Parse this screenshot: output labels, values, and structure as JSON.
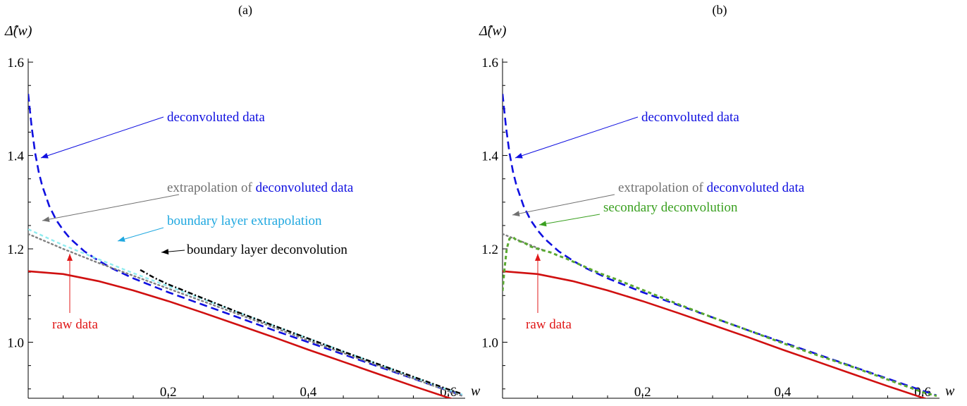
{
  "chart_data": [
    {
      "type": "line",
      "panel_label": "(a)",
      "xlabel": "w",
      "ylabel": "Δ̂(w)",
      "xlim": [
        0,
        0.62
      ],
      "ylim": [
        0.88,
        1.65
      ],
      "x_ticks": [
        {
          "value": 0.2,
          "label": "0.2"
        },
        {
          "value": 0.4,
          "label": "0.4"
        },
        {
          "value": 0.6,
          "label": "0.6"
        }
      ],
      "y_ticks": [
        {
          "value": 1.0,
          "label": "1.0"
        },
        {
          "value": 1.2,
          "label": "1.2"
        },
        {
          "value": 1.4,
          "label": "1.4"
        },
        {
          "value": 1.6,
          "label": "1.6"
        }
      ],
      "grid": false,
      "series": [
        {
          "key": "raw",
          "color": "#d01010",
          "dash": "solid",
          "x": [
            0,
            0.05,
            0.1,
            0.15,
            0.2,
            0.25,
            0.3,
            0.35,
            0.4,
            0.45,
            0.5,
            0.55,
            0.6,
            0.62
          ],
          "y": [
            1.152,
            1.146,
            1.131,
            1.111,
            1.088,
            1.063,
            1.037,
            1.011,
            0.984,
            0.958,
            0.932,
            0.906,
            0.881,
            0.872
          ]
        },
        {
          "key": "deconv",
          "color": "#1010e0",
          "dash": "long",
          "x": [
            0.0,
            0.005,
            0.01,
            0.015,
            0.02,
            0.03,
            0.04,
            0.05,
            0.06,
            0.08,
            0.1,
            0.12,
            0.15,
            0.2,
            0.25,
            0.3,
            0.35,
            0.4,
            0.45,
            0.5,
            0.55,
            0.6,
            0.62
          ],
          "y": [
            1.532,
            1.46,
            1.405,
            1.365,
            1.335,
            1.292,
            1.262,
            1.24,
            1.222,
            1.195,
            1.175,
            1.158,
            1.137,
            1.107,
            1.08,
            1.053,
            1.026,
            1.0,
            0.974,
            0.948,
            0.922,
            0.896,
            0.886
          ]
        },
        {
          "key": "extrap",
          "color": "#808080",
          "dash": "dot",
          "x": [
            0,
            0.05,
            0.1,
            0.2,
            0.3,
            0.4,
            0.5,
            0.6,
            0.62
          ],
          "y": [
            1.232,
            1.2,
            1.17,
            1.115,
            1.06,
            1.004,
            0.95,
            0.895,
            0.885
          ]
        },
        {
          "key": "bl_extrap",
          "color": "#90ecf0",
          "dash": "short",
          "x": [
            0,
            0.05,
            0.1,
            0.15,
            0.2,
            0.3,
            0.4,
            0.5,
            0.6,
            0.62
          ],
          "y": [
            1.242,
            1.208,
            1.178,
            1.148,
            1.12,
            1.064,
            1.008,
            0.953,
            0.898,
            0.888
          ]
        },
        {
          "key": "bl_deconv",
          "color": "#000000",
          "dash": "dashdot",
          "x": [
            0.16,
            0.18,
            0.2,
            0.22,
            0.25,
            0.3,
            0.35,
            0.4,
            0.45,
            0.5,
            0.55,
            0.6,
            0.62
          ],
          "y": [
            1.155,
            1.138,
            1.124,
            1.112,
            1.094,
            1.064,
            1.036,
            1.008,
            0.98,
            0.953,
            0.926,
            0.899,
            0.889
          ]
        }
      ],
      "annotations": [
        {
          "key": "deconv",
          "text": "deconvoluted data",
          "color": "#1010e0"
        },
        {
          "key": "extrap",
          "prefix": "extrapolation of ",
          "prefix_color": "#707070",
          "text": "deconvoluted data",
          "color": "#1010e0"
        },
        {
          "key": "bl_extrap",
          "text": "boundary layer extrapolation",
          "color": "#20a8e0"
        },
        {
          "key": "bl_deconv",
          "text": "boundary layer deconvolution",
          "color": "#000000"
        },
        {
          "key": "raw",
          "text": "raw data",
          "color": "#e01818"
        }
      ]
    },
    {
      "type": "line",
      "panel_label": "(b)",
      "xlabel": "w",
      "ylabel": "Δ̂(w)",
      "xlim": [
        0,
        0.62
      ],
      "ylim": [
        0.88,
        1.65
      ],
      "x_ticks": [
        {
          "value": 0.2,
          "label": "0.2"
        },
        {
          "value": 0.4,
          "label": "0.4"
        },
        {
          "value": 0.6,
          "label": "0.6"
        }
      ],
      "y_ticks": [
        {
          "value": 1.0,
          "label": "1.0"
        },
        {
          "value": 1.2,
          "label": "1.2"
        },
        {
          "value": 1.4,
          "label": "1.4"
        },
        {
          "value": 1.6,
          "label": "1.6"
        }
      ],
      "grid": false,
      "series": [
        {
          "key": "raw",
          "color": "#d01010",
          "dash": "solid",
          "x": [
            0,
            0.05,
            0.1,
            0.15,
            0.2,
            0.25,
            0.3,
            0.35,
            0.4,
            0.45,
            0.5,
            0.55,
            0.6,
            0.62
          ],
          "y": [
            1.152,
            1.146,
            1.131,
            1.111,
            1.088,
            1.063,
            1.037,
            1.011,
            0.984,
            0.958,
            0.932,
            0.906,
            0.881,
            0.872
          ]
        },
        {
          "key": "deconv",
          "color": "#1010e0",
          "dash": "long",
          "x": [
            0.0,
            0.005,
            0.01,
            0.015,
            0.02,
            0.03,
            0.04,
            0.05,
            0.06,
            0.08,
            0.1,
            0.12,
            0.15,
            0.2,
            0.25,
            0.3,
            0.35,
            0.4,
            0.45,
            0.5,
            0.55,
            0.6,
            0.62
          ],
          "y": [
            1.532,
            1.46,
            1.405,
            1.365,
            1.335,
            1.292,
            1.262,
            1.24,
            1.222,
            1.195,
            1.175,
            1.158,
            1.137,
            1.107,
            1.08,
            1.053,
            1.026,
            1.0,
            0.974,
            0.948,
            0.922,
            0.896,
            0.886
          ]
        },
        {
          "key": "extrap",
          "color": "#808080",
          "dash": "dot",
          "x": [
            0,
            0.02,
            0.04,
            0.06
          ],
          "y": [
            1.232,
            1.22,
            1.208,
            1.196
          ]
        },
        {
          "key": "secondary",
          "color": "#5aa832",
          "dash": "short",
          "x": [
            0.0,
            0.003,
            0.006,
            0.01,
            0.015,
            0.02,
            0.03,
            0.04,
            0.05,
            0.06,
            0.07,
            0.08,
            0.09,
            0.1,
            0.12,
            0.14,
            0.16,
            0.18,
            0.2,
            0.25,
            0.3,
            0.35,
            0.4,
            0.45,
            0.5,
            0.55,
            0.6,
            0.62
          ],
          "y": [
            1.11,
            1.16,
            1.2,
            1.222,
            1.225,
            1.218,
            1.214,
            1.205,
            1.2,
            1.196,
            1.192,
            1.185,
            1.18,
            1.173,
            1.16,
            1.147,
            1.136,
            1.124,
            1.112,
            1.082,
            1.053,
            1.026,
            0.998,
            0.972,
            0.947,
            0.92,
            0.893,
            0.885
          ]
        }
      ],
      "annotations": [
        {
          "key": "deconv",
          "text": "deconvoluted data",
          "color": "#1010e0"
        },
        {
          "key": "extrap",
          "prefix": "extrapolation of ",
          "prefix_color": "#707070",
          "text": "deconvoluted data",
          "color": "#1010e0"
        },
        {
          "key": "secondary",
          "text": "secondary deconvolution",
          "color": "#3aa020"
        },
        {
          "key": "raw",
          "text": "raw data",
          "color": "#e01818"
        }
      ]
    }
  ]
}
